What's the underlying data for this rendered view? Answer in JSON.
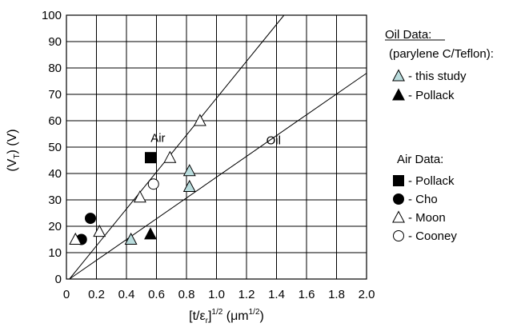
{
  "chart_data": {
    "type": "scatter",
    "xlabel": "[t/ε",
    "xlabel_sub": "r",
    "xlabel_mid": "]",
    "xlabel_sup": "1/2",
    "xlabel_unit": " (μm",
    "xlabel_unit_sup": "1/2",
    "xlabel_end": ")",
    "ylabel": "(V",
    "ylabel_sub": "T",
    "ylabel_end": ") (V)",
    "xlim": [
      0,
      2.0
    ],
    "ylim": [
      0,
      100
    ],
    "x_ticks": [
      "0",
      "0.2",
      "0.4",
      "0.6",
      "0.8",
      "1.0",
      "1.2",
      "1.4",
      "1.6",
      "1.8",
      "2.0"
    ],
    "y_ticks": [
      "0",
      "10",
      "20",
      "30",
      "40",
      "50",
      "60",
      "70",
      "80",
      "90",
      "100"
    ],
    "x_tick_values": [
      0,
      0.2,
      0.4,
      0.6,
      0.8,
      1.0,
      1.2,
      1.4,
      1.6,
      1.8,
      2.0
    ],
    "y_tick_values": [
      0,
      10,
      20,
      30,
      40,
      50,
      60,
      70,
      80,
      90,
      100
    ],
    "grid": true,
    "fit_lines": [
      {
        "name": "Air",
        "x": [
          0.02,
          1.45
        ],
        "y": [
          0,
          100
        ],
        "label_at": [
          0.61,
          52
        ]
      },
      {
        "name": "Oil",
        "x": [
          0.02,
          2.0
        ],
        "y": [
          0,
          78
        ],
        "label_at": [
          1.38,
          51
        ]
      }
    ],
    "series": [
      {
        "name": "this study",
        "group": "Oil Data",
        "marker": "triangle",
        "fill": "#b9dcdd",
        "x": [
          0.43,
          0.82,
          0.82
        ],
        "y": [
          15,
          41,
          35
        ]
      },
      {
        "name": "Pollack",
        "group": "Oil Data",
        "marker": "triangle",
        "fill": "#000000",
        "x": [
          0.56
        ],
        "y": [
          17
        ]
      },
      {
        "name": "Pollack",
        "group": "Air Data",
        "marker": "square",
        "fill": "#000000",
        "x": [
          0.56
        ],
        "y": [
          46
        ]
      },
      {
        "name": "Cho",
        "group": "Air Data",
        "marker": "circle",
        "fill": "#000000",
        "x": [
          0.1,
          0.16
        ],
        "y": [
          15,
          23
        ]
      },
      {
        "name": "Moon",
        "group": "Air Data",
        "marker": "triangle",
        "fill": "#ffffff",
        "x": [
          0.06,
          0.22,
          0.49,
          0.69,
          0.89
        ],
        "y": [
          15,
          18,
          31,
          46,
          60
        ]
      },
      {
        "name": "Cooney",
        "group": "Air Data",
        "marker": "circle",
        "fill": "#ffffff",
        "x": [
          0.58
        ],
        "y": [
          36
        ]
      }
    ],
    "legend": {
      "oil_title": "Oil Data:",
      "oil_subtitle": "(parylene C/Teflon):",
      "oil_items": [
        {
          "marker": "triangle",
          "fill": "#b9dcdd",
          "label": "- this study"
        },
        {
          "marker": "triangle",
          "fill": "#000000",
          "label": "- Pollack"
        }
      ],
      "air_title": "Air Data:",
      "air_items": [
        {
          "marker": "square",
          "fill": "#000000",
          "label": "- Pollack"
        },
        {
          "marker": "circle",
          "fill": "#000000",
          "label": "- Cho"
        },
        {
          "marker": "triangle",
          "fill": "#ffffff",
          "label": "- Moon"
        },
        {
          "marker": "circle",
          "fill": "#ffffff",
          "label": "- Cooney"
        }
      ]
    }
  }
}
